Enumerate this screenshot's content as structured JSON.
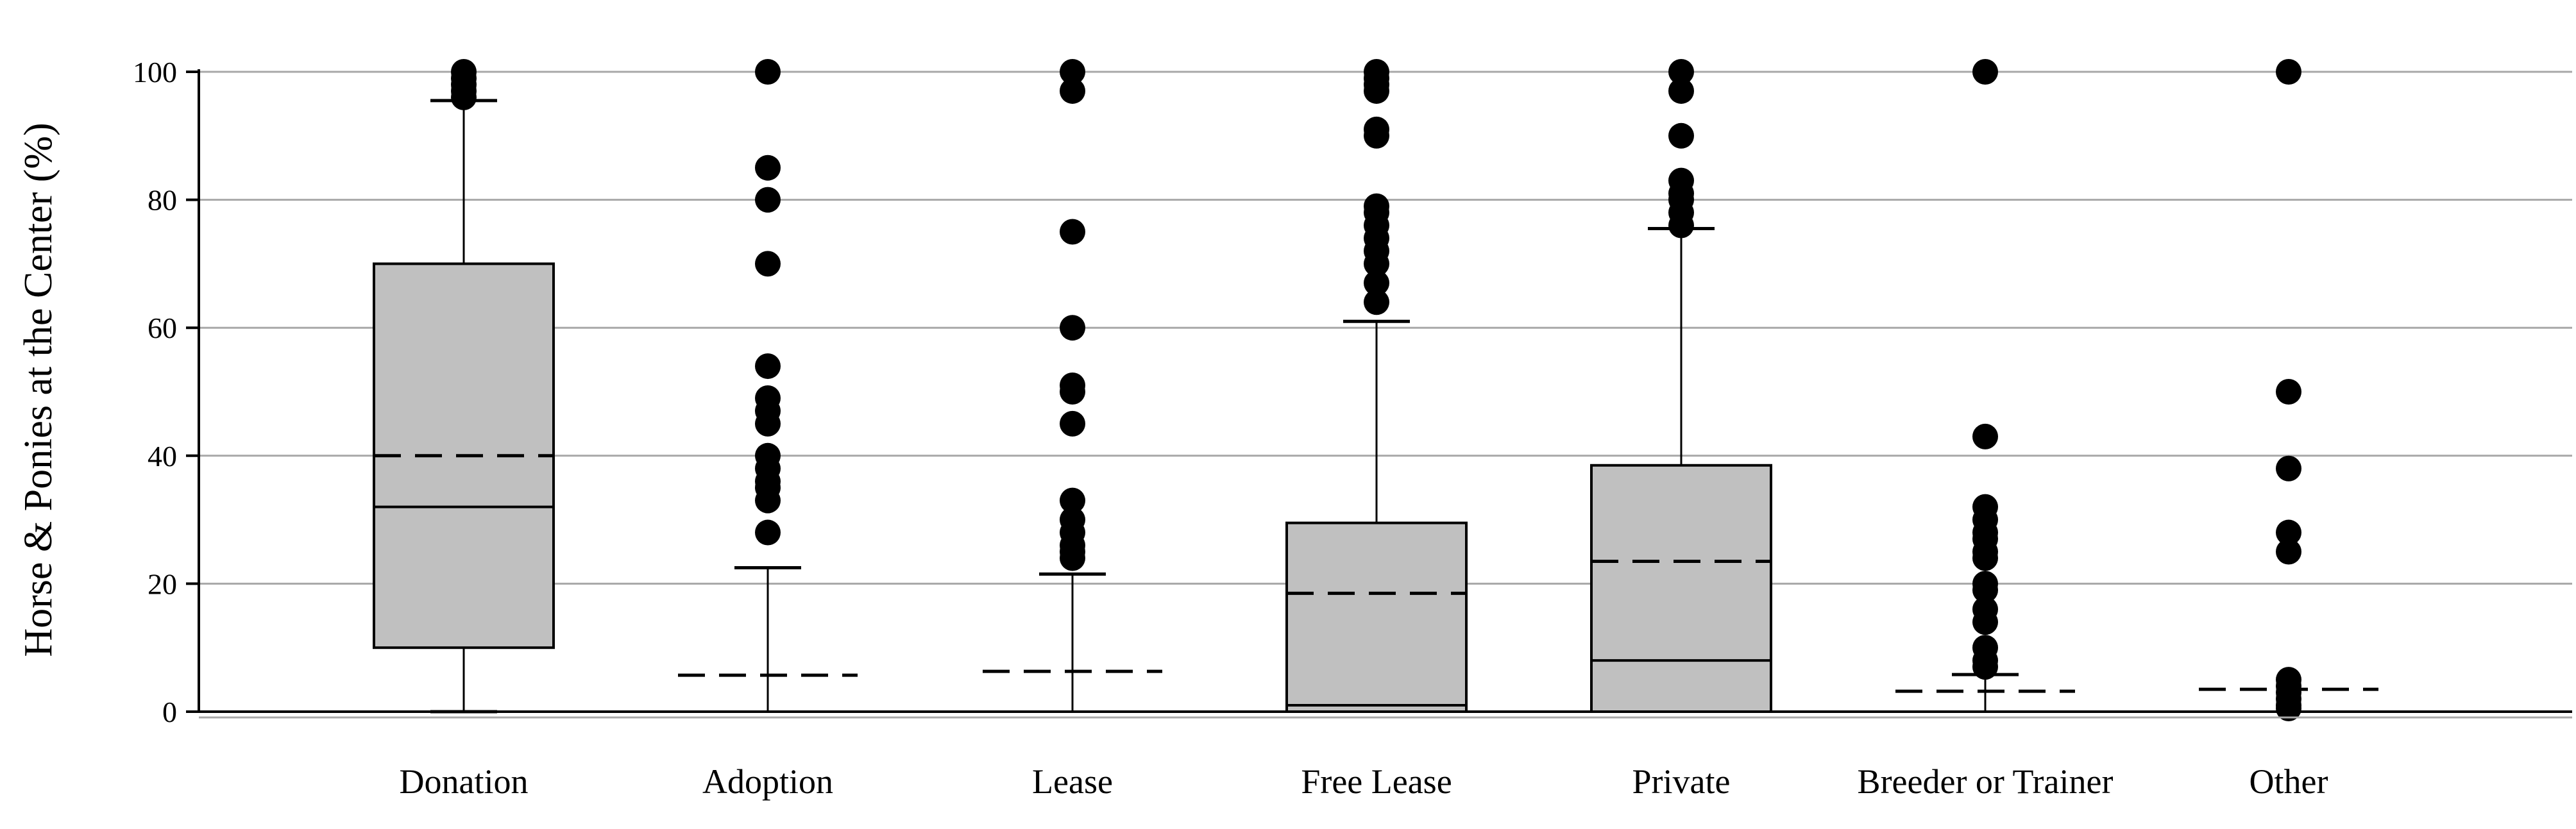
{
  "chart_data": {
    "type": "box",
    "ylabel": "Horse & Ponies at the Center (%)",
    "xlabel": "",
    "ylim": [
      0,
      100
    ],
    "yticks": [
      0,
      20,
      40,
      60,
      80,
      100
    ],
    "grid": true,
    "colors": {
      "box_fill": "#c0c0c0",
      "stroke": "#000000",
      "grid": "#a8a8a8",
      "outlier": "#000000"
    },
    "categories": [
      "Donation",
      "Adoption",
      "Lease",
      "Free Lease",
      "Private",
      "Breeder or Trainer",
      "Other"
    ],
    "boxes": [
      {
        "name": "Donation",
        "q1": 10,
        "median": 32,
        "q3": 70,
        "mean": 40,
        "whisker_low": 0,
        "whisker_high": 95.5,
        "outliers": [
          96,
          97,
          98,
          99,
          100
        ]
      },
      {
        "name": "Adoption",
        "q1": 0,
        "median": 0,
        "q3": 0,
        "mean": 5.7,
        "whisker_low": 0,
        "whisker_high": 22.5,
        "outliers": [
          28,
          33,
          35,
          36,
          38,
          40,
          45,
          47,
          49,
          54,
          70,
          80,
          85,
          100
        ]
      },
      {
        "name": "Lease",
        "q1": 0,
        "median": 0,
        "q3": 0,
        "mean": 6.3,
        "whisker_low": 0,
        "whisker_high": 21.5,
        "outliers": [
          24,
          25,
          26,
          28,
          30,
          33,
          45,
          50,
          51,
          60,
          75,
          97,
          100
        ]
      },
      {
        "name": "Free Lease",
        "q1": 0,
        "median": 1,
        "q3": 29.5,
        "mean": 18.5,
        "whisker_low": 0,
        "whisker_high": 61,
        "outliers": [
          64,
          67,
          70,
          72,
          74,
          76,
          78,
          79,
          90,
          91,
          97,
          98,
          99,
          100
        ]
      },
      {
        "name": "Private",
        "q1": 0,
        "median": 8,
        "q3": 38.5,
        "mean": 23.5,
        "whisker_low": 0,
        "whisker_high": 75.5,
        "outliers": [
          76,
          78,
          80,
          81,
          83,
          90,
          97,
          100
        ]
      },
      {
        "name": "Breeder or Trainer",
        "q1": 0,
        "median": 0,
        "q3": 0,
        "mean": 3.2,
        "whisker_low": 0,
        "whisker_high": 5.8,
        "outliers": [
          7,
          8,
          10,
          14,
          16,
          19,
          20,
          24,
          25,
          27,
          28,
          30,
          32,
          43,
          100
        ]
      },
      {
        "name": "Other",
        "q1": 0,
        "median": 0,
        "q3": 0,
        "mean": 3.5,
        "whisker_low": 0,
        "whisker_high": 0,
        "outliers": [
          0.5,
          1,
          2,
          3,
          4,
          5,
          25,
          28,
          38,
          50,
          100
        ]
      }
    ]
  }
}
